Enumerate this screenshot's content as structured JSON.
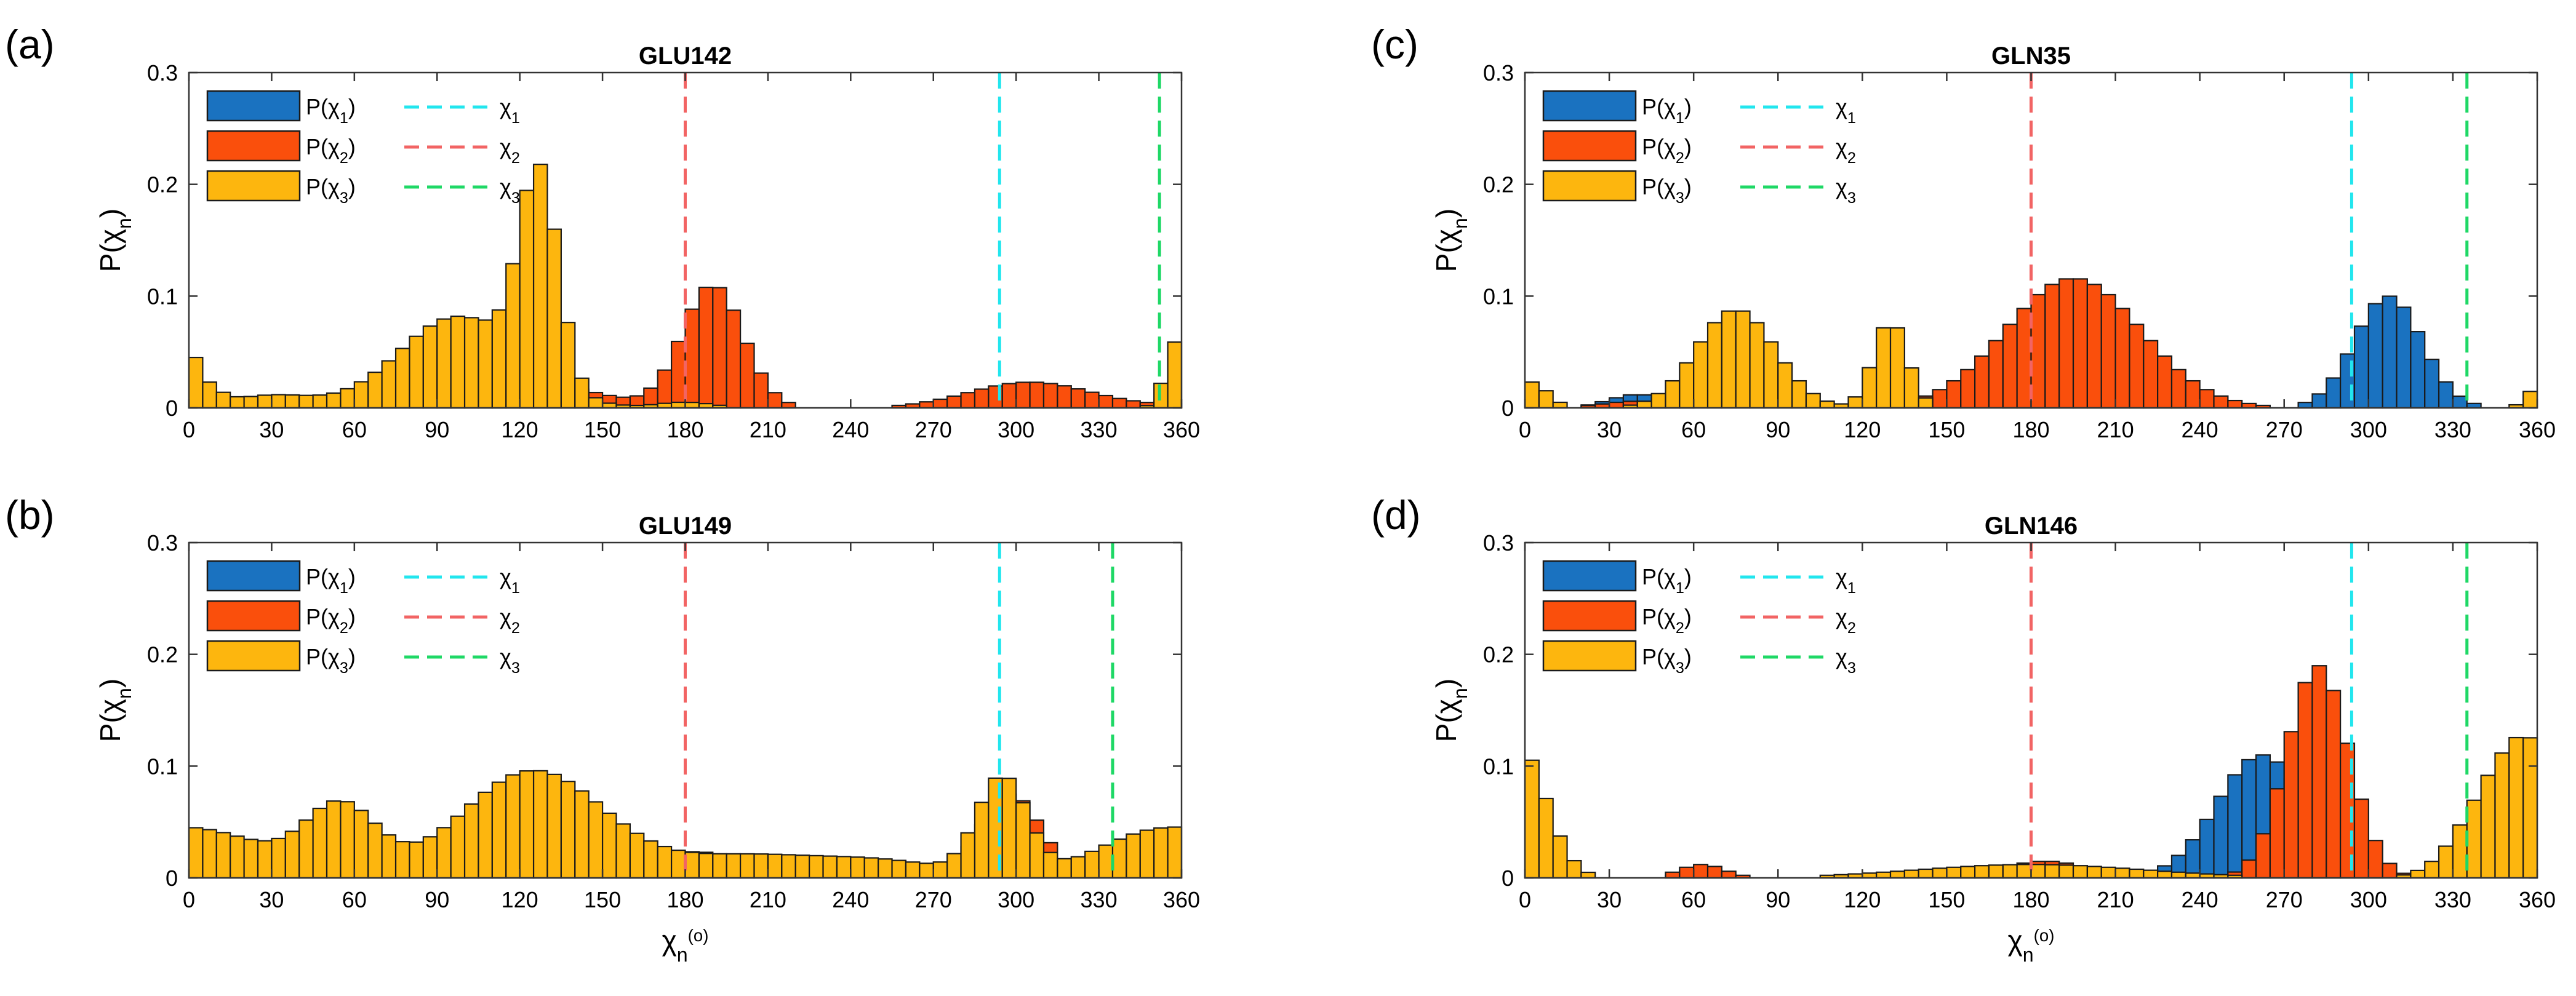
{
  "figure": {
    "x_axis_label": "χn(°)",
    "y_axis_label": "P(χn)",
    "x_ticks": [
      0,
      30,
      60,
      90,
      120,
      150,
      180,
      210,
      240,
      270,
      300,
      330,
      360
    ],
    "y_ticks": [
      0,
      0.1,
      0.2,
      0.3
    ],
    "colors": {
      "chi1": "#1a72c0",
      "chi2": "#fa4f0c",
      "chi3": "#fdb60e",
      "line1": "#22e6ee",
      "line2": "#f26464",
      "line3": "#1fd866"
    },
    "legend": [
      "P(χ1)",
      "χ1",
      "P(χ2)",
      "χ2",
      "P(χ3)",
      "χ3"
    ]
  },
  "chart_data": [
    {
      "panel": "(a)",
      "title": "GLU142",
      "type": "bar",
      "stacked": false,
      "xlim": [
        0,
        360
      ],
      "ylim": [
        0,
        0.3
      ],
      "bin_width": 5,
      "xlabel": "",
      "ylabel": "P(χn)",
      "vlines": {
        "chi1": 294,
        "chi2": 180,
        "chi3": 352
      },
      "series": [
        {
          "name": "P(χ1)",
          "peaks": [
            [
              105,
              0.07,
              21
            ],
            [
              300,
              0.004,
              20
            ]
          ]
        },
        {
          "name": "P(χ2)",
          "peaks": [
            [
              40,
              0.006,
              30
            ],
            [
              120,
              0.025,
              25
            ],
            [
              190,
              0.11,
              11
            ],
            [
              305,
              0.023,
              22
            ]
          ]
        },
        {
          "name": "P(χ3)",
          "peaks": [
            [
              5,
              0.018,
              6
            ],
            [
              30,
              0.011,
              15
            ],
            [
              98,
              0.082,
              22
            ],
            [
              127,
              0.185,
              7
            ],
            [
              180,
              0.005,
              10
            ],
            [
              358,
              0.05,
              4
            ]
          ]
        }
      ]
    },
    {
      "panel": "(b)",
      "title": "GLU149",
      "type": "bar",
      "stacked": false,
      "xlim": [
        0,
        360
      ],
      "ylim": [
        0,
        0.3
      ],
      "bin_width": 5,
      "xlabel": "χn(°)",
      "ylabel": "P(χn)",
      "vlines": {
        "chi1": 294,
        "chi2": 180,
        "chi3": 335
      },
      "series": [
        {
          "name": "P(χ1)",
          "peaks": [
            [
              125,
              0.076,
              23
            ],
            [
              293,
              0.02,
              8
            ]
          ]
        },
        {
          "name": "P(χ2)",
          "peaks": [
            [
              55,
              0.055,
              13
            ],
            [
              120,
              0.015,
              30
            ],
            [
              185,
              0.022,
              15
            ],
            [
              298,
              0.075,
              11
            ]
          ]
        },
        {
          "name": "P(χ3)",
          "peaks": [
            [
              15,
              0.028,
              20
            ],
            [
              55,
              0.063,
              13
            ],
            [
              125,
              0.096,
              26
            ],
            [
              200,
              0.018,
              25
            ],
            [
              250,
              0.015,
              25
            ],
            [
              295,
              0.088,
              9
            ],
            [
              345,
              0.032,
              20
            ]
          ]
        }
      ]
    },
    {
      "panel": "(c)",
      "title": "GLN35",
      "type": "bar",
      "stacked": false,
      "xlim": [
        0,
        360
      ],
      "ylim": [
        0,
        0.3
      ],
      "bin_width": 5,
      "xlabel": "",
      "ylabel": "P(χn)",
      "vlines": {
        "chi1": 294,
        "chi2": 180,
        "chi3": 335
      },
      "series": [
        {
          "name": "P(χ1)",
          "peaks": [
            [
              40,
              0.012,
              10
            ],
            [
              205,
              0.052,
              14
            ],
            [
              307,
              0.1,
              12
            ]
          ]
        },
        {
          "name": "P(χ2)",
          "peaks": [
            [
              40,
              0.006,
              12
            ],
            [
              195,
              0.116,
              24
            ]
          ]
        },
        {
          "name": "P(χ3)",
          "peaks": [
            [
              5,
              0.015,
              5
            ],
            [
              75,
              0.088,
              14
            ],
            [
              130,
              0.078,
              6
            ],
            [
              360,
              0.012,
              4
            ]
          ]
        }
      ]
    },
    {
      "panel": "(d)",
      "title": "GLN146",
      "type": "bar",
      "stacked": false,
      "xlim": [
        0,
        360
      ],
      "ylim": [
        0,
        0.3
      ],
      "bin_width": 5,
      "xlabel": "χn(°)",
      "ylabel": "P(χn)",
      "vlines": {
        "chi1": 294,
        "chi2": 180,
        "chi3": 335
      },
      "series": [
        {
          "name": "P(χ1)",
          "peaks": [
            [
              262,
              0.11,
              16
            ],
            [
              63,
              0.01,
              6
            ]
          ]
        },
        {
          "name": "P(χ2)",
          "peaks": [
            [
              282,
              0.19,
              11
            ],
            [
              63,
              0.012,
              8
            ],
            [
              185,
              0.015,
              15
            ]
          ]
        },
        {
          "name": "P(χ3)",
          "peaks": [
            [
              0,
              0.065,
              9
            ],
            [
              180,
              0.012,
              40
            ],
            [
              347,
              0.087,
              13
            ]
          ]
        }
      ]
    }
  ]
}
